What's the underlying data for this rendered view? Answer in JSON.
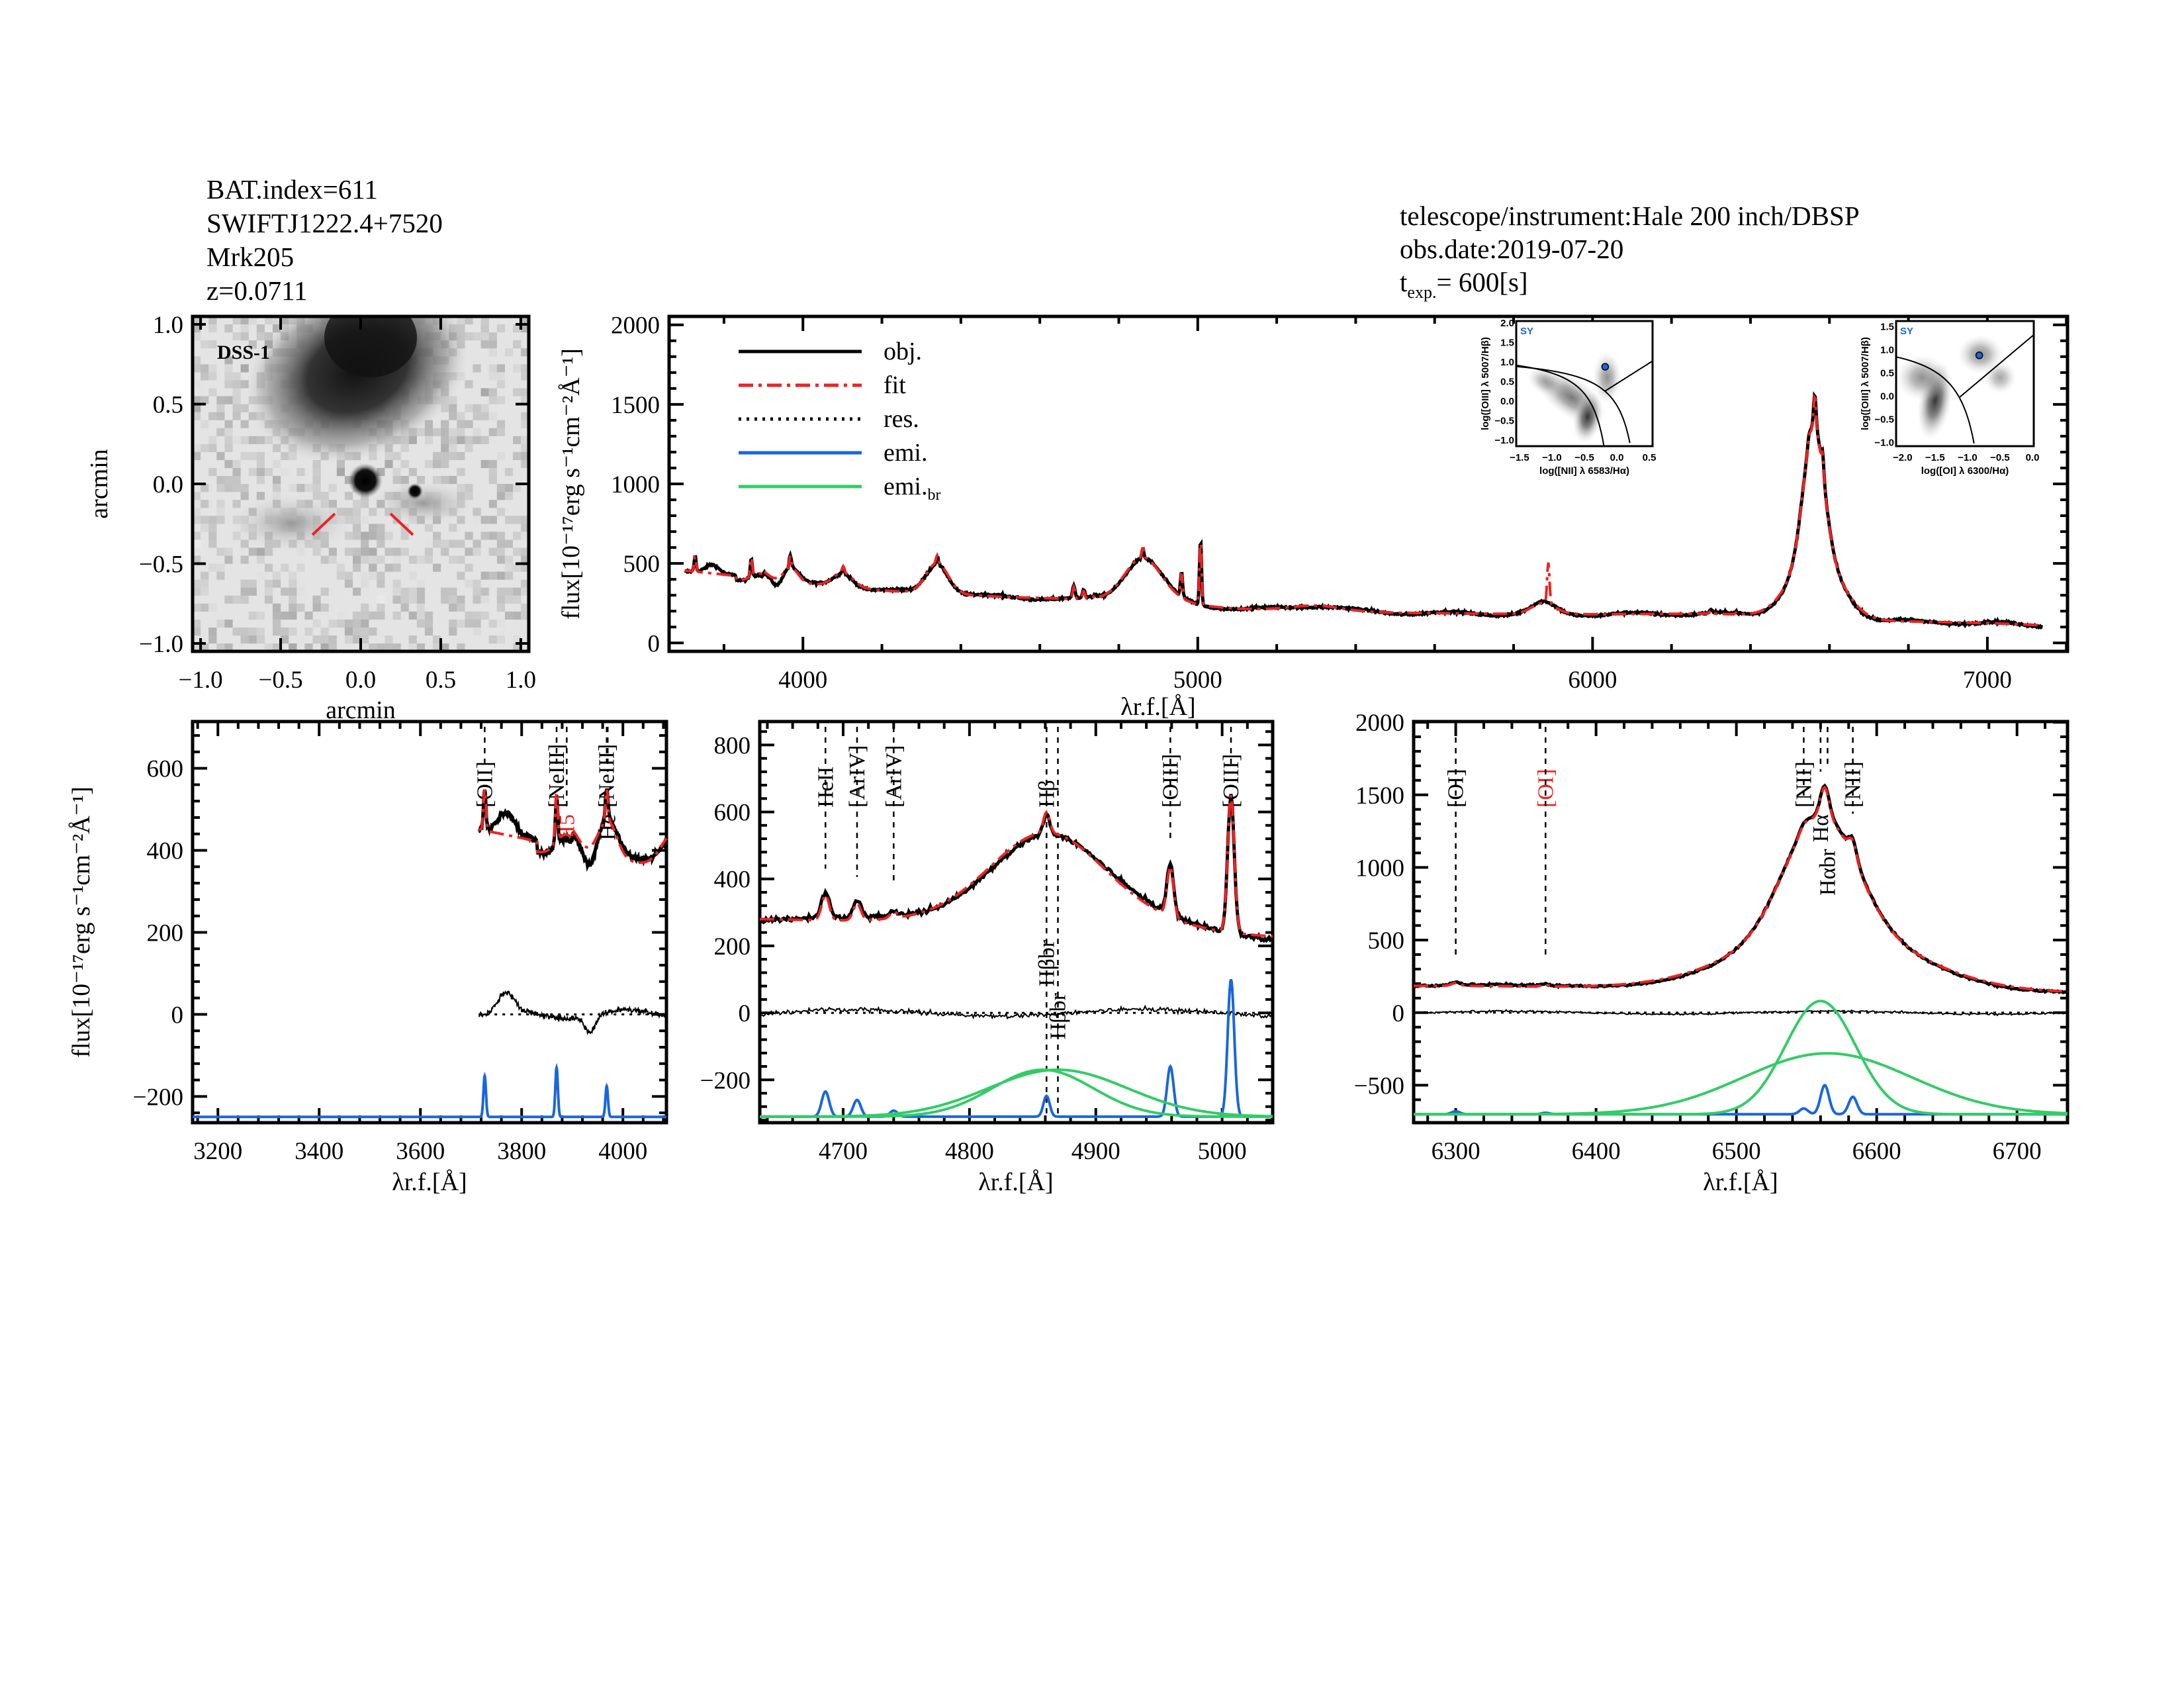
{
  "header": {
    "bat_index": "BAT.index=611",
    "swift_name": "SWIFTJ1222.4+7520",
    "object": "Mrk205",
    "redshift": "z=0.0711",
    "telescope": "telescope/instrument:Hale 200 inch/DBSP",
    "obs_date": "obs.date:2019-07-20",
    "texp_prefix": "t",
    "texp_sub": "exp.",
    "texp_value": "=  600[s]"
  },
  "colors": {
    "obj": "#000000",
    "fit": "#ee2222",
    "emi": "#1a66dd",
    "emi_br": "#33cc66",
    "sy": "#1a66dd"
  },
  "chart_data": [
    {
      "id": "image",
      "type": "image",
      "title": "DSS-1",
      "xlabel": "arcmin",
      "ylabel": "arcmin",
      "xlim": [
        -1.05,
        1.05
      ],
      "ylim": [
        -1.05,
        1.05
      ],
      "xticks": [
        "-1.0",
        "-0.5",
        "0.0",
        "0.5",
        "1.0"
      ],
      "yticks": [
        "-1.0",
        "-0.5",
        "0.0",
        "0.5",
        "1.0"
      ],
      "tick_values": [
        -1.0,
        -0.5,
        0.0,
        0.5,
        1.0
      ]
    },
    {
      "id": "full",
      "type": "line",
      "xlabel": "λr.f.[Å]",
      "xlabel_main": "λ",
      "xlabel_sub": "r.f.",
      "xlabel_unit": "[Å]",
      "ylabel": "flux[10⁻¹⁷erg s⁻¹cm⁻²Å⁻¹]",
      "xlim": [
        3661,
        7203
      ],
      "ylim": [
        -53,
        2053
      ],
      "xticks": [
        4000,
        5000,
        6000,
        7000
      ],
      "yticks": [
        0,
        500,
        1000,
        1500,
        2000
      ],
      "legend": [
        {
          "name": "obj.",
          "style": "solid",
          "color": "#000000"
        },
        {
          "name": "fit",
          "style": "dashdot",
          "color": "#ee2222"
        },
        {
          "name": "res.",
          "style": "dotted",
          "color": "#000000"
        },
        {
          "name": "emi.",
          "style": "solid",
          "color": "#1a66dd"
        },
        {
          "name": "emi.",
          "sub": "br",
          "style": "solid",
          "color": "#33cc66"
        }
      ],
      "series": [
        "obj.",
        "fit"
      ]
    },
    {
      "id": "oii",
      "type": "line",
      "xlabel": "λr.f.[Å]",
      "ylabel": "flux[10⁻¹⁷erg s⁻¹cm⁻²Å⁻¹]",
      "xlim": [
        3150,
        4086
      ],
      "ylim": [
        -264,
        714
      ],
      "data_range": [
        3715,
        4086
      ],
      "xticks": [
        3200,
        3400,
        3600,
        3800,
        4000
      ],
      "yticks": [
        -200,
        0,
        200,
        400,
        600
      ],
      "emi_offset": -250,
      "lines": [
        {
          "label": "[OII]",
          "wave": 3727,
          "color": "#000000"
        },
        {
          "label": "[NeIII]",
          "wave": 3869,
          "color": "#000000"
        },
        {
          "label": "H5",
          "wave": 3889,
          "color": "#ee2222"
        },
        {
          "label": "[NeIII]",
          "wave": 3968,
          "color": "#000000"
        },
        {
          "label": "He",
          "wave": 3970,
          "color": "#000000"
        }
      ]
    },
    {
      "id": "hbeta",
      "type": "line",
      "xlabel": "λr.f.[Å]",
      "xlim": [
        4634,
        5040
      ],
      "ylim": [
        -328,
        870
      ],
      "data_range": [
        4634,
        5040
      ],
      "xticks": [
        4700,
        4800,
        4900,
        5000
      ],
      "yticks": [
        -200,
        0,
        200,
        400,
        600,
        800
      ],
      "emi_offset": -310,
      "lines": [
        {
          "label": "HeII",
          "wave": 4686,
          "color": "#000000"
        },
        {
          "label": "[ArIV]",
          "wave": 4711,
          "color": "#000000"
        },
        {
          "label": "[ArIV]",
          "wave": 4740,
          "color": "#000000"
        },
        {
          "label": "Hβ",
          "wave": 4861,
          "color": "#000000"
        },
        {
          "label": "Hβbr",
          "wave": 4861,
          "color": "#000000",
          "low": true
        },
        {
          "label": "Hβbr",
          "wave": 4870,
          "color": "#000000",
          "low": true
        },
        {
          "label": "[OIII]",
          "wave": 4959,
          "color": "#000000"
        },
        {
          "label": "[OIII]",
          "wave": 5007,
          "color": "#000000"
        }
      ]
    },
    {
      "id": "halpha",
      "type": "line",
      "xlabel": "λr.f.[Å]",
      "xlim": [
        6270,
        6736
      ],
      "ylim": [
        -758,
        2005
      ],
      "data_range": [
        6270,
        6736
      ],
      "xticks": [
        6300,
        6400,
        6500,
        6600,
        6700
      ],
      "yticks": [
        -500,
        0,
        500,
        1000,
        1500,
        2000
      ],
      "emi_offset": -700,
      "lines": [
        {
          "label": "[OI]",
          "wave": 6300,
          "color": "#000000"
        },
        {
          "label": "[OI]",
          "wave": 6364,
          "color": "#ee2222"
        },
        {
          "label": "[NII]",
          "wave": 6548,
          "color": "#000000"
        },
        {
          "label": "Hα",
          "wave": 6560,
          "color": "#000000"
        },
        {
          "label": "Hαbr",
          "wave": 6565,
          "color": "#000000"
        },
        {
          "label": "[NII]",
          "wave": 6583,
          "color": "#000000"
        }
      ]
    },
    {
      "id": "bpt_nii",
      "type": "scatter",
      "label": "SY",
      "xlabel": "log([NII] λ 6583/Hα)",
      "ylabel": "log([OIII] λ 5007/Hβ)",
      "xlim": [
        -1.55,
        0.55
      ],
      "ylim": [
        -1.15,
        2.05
      ],
      "xticks": [
        "-1.5",
        "-1.0",
        "-0.5",
        "0.0",
        "0.5"
      ],
      "xtick_values": [
        -1.5,
        -1.0,
        -0.5,
        0.0,
        0.5
      ],
      "yticks": [
        "-1.0",
        "-0.5",
        "0.0",
        "0.5",
        "1.0",
        "1.5",
        "2.0"
      ],
      "ytick_values": [
        -1.0,
        -0.5,
        0.0,
        0.5,
        1.0,
        1.5,
        2.0
      ],
      "point": [
        -0.18,
        0.88
      ]
    },
    {
      "id": "bpt_oi",
      "type": "scatter",
      "label": "SY",
      "xlabel": "log([OI] λ 6300/Hα)",
      "ylabel": "log([OIII] λ 5007/Hβ)",
      "xlim": [
        -2.1,
        0.02
      ],
      "ylim": [
        -1.08,
        1.62
      ],
      "xticks": [
        "-2.0",
        "-1.5",
        "-1.0",
        "-0.5",
        "0.0"
      ],
      "xtick_values": [
        -2.0,
        -1.5,
        -1.0,
        -0.5,
        0.0
      ],
      "yticks": [
        "-1.0",
        "-0.5",
        "0.0",
        "0.5",
        "1.0",
        "1.5"
      ],
      "ytick_values": [
        -1.0,
        -0.5,
        0.0,
        0.5,
        1.0,
        1.5
      ],
      "point": [
        -0.82,
        0.88
      ]
    }
  ],
  "model": {
    "continuum": [
      [
        3600,
        460
      ],
      [
        3700,
        455
      ],
      [
        3800,
        430
      ],
      [
        3900,
        400
      ],
      [
        4000,
        375
      ],
      [
        4200,
        330
      ],
      [
        4500,
        290
      ],
      [
        4700,
        275
      ],
      [
        4800,
        270
      ],
      [
        4950,
        245
      ],
      [
        5100,
        215
      ],
      [
        5300,
        205
      ],
      [
        5500,
        190
      ],
      [
        5800,
        182
      ],
      [
        6000,
        180
      ],
      [
        6300,
        185
      ],
      [
        6500,
        165
      ],
      [
        6700,
        140
      ],
      [
        7000,
        125
      ],
      [
        7250,
        100
      ]
    ],
    "narrow": [
      [
        3727,
        100,
        2.5
      ],
      [
        3869,
        120,
        2.5
      ],
      [
        3968,
        75,
        2.5
      ],
      [
        4102,
        40,
        3
      ],
      [
        4340,
        50,
        3
      ],
      [
        4686,
        75,
        3
      ],
      [
        4711,
        50,
        3
      ],
      [
        4740,
        18,
        3
      ],
      [
        4861,
        62,
        2.5
      ],
      [
        4959,
        150,
        2.6
      ],
      [
        5007,
        410,
        2.6
      ],
      [
        6300,
        20,
        3
      ],
      [
        6364,
        10,
        3
      ],
      [
        6548,
        40,
        3
      ],
      [
        6563,
        200,
        3
      ],
      [
        6583,
        120,
        3
      ]
    ],
    "broad": [
      [
        3889,
        60,
        20
      ],
      [
        3970,
        90,
        18
      ],
      [
        4102,
        90,
        25
      ],
      [
        4340,
        190,
        28
      ],
      [
        4858,
        140,
        40
      ],
      [
        4870,
        140,
        55
      ],
      [
        5876,
        70,
        30
      ],
      [
        5300,
        30,
        60
      ],
      [
        6560,
        780,
        25
      ],
      [
        6565,
        420,
        60
      ]
    ]
  }
}
